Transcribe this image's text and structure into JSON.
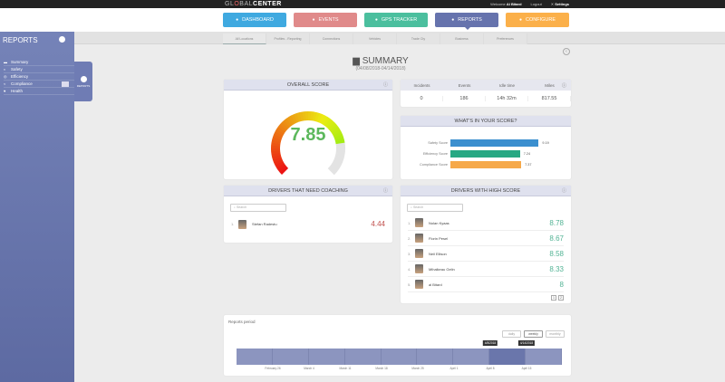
{
  "app": {
    "logo_prefix": "GL",
    "logo_o": "O",
    "logo_main": "BAL",
    "logo_suffix": "CENTER",
    "welcome": "Welcome",
    "user": "Al Bitard",
    "logout": "Logout",
    "settings": "Settings"
  },
  "nav": [
    {
      "label": "DASHBOARD",
      "icon": "dashboard-icon",
      "color": "#3fa9e0"
    },
    {
      "label": "EVENTS",
      "icon": "warning-icon",
      "color": "#e08a8a"
    },
    {
      "label": "GPS TRACKER",
      "icon": "location-pin-icon",
      "color": "#4bbf9e"
    },
    {
      "label": "REPORTS",
      "icon": "pie-chart-icon",
      "color": "#6673ad",
      "active": true
    },
    {
      "label": "CONFIGURE",
      "icon": "user-icon",
      "color": "#fbb04a"
    }
  ],
  "subtabs": [
    "All Locations",
    "Profiles - Reporting",
    "Connections",
    "Vehicles",
    "Trade Cty",
    "Business",
    "Preferences"
  ],
  "sidebar": {
    "title": "REPORTS",
    "items": [
      {
        "label": "Summary",
        "icon": "chart-icon"
      },
      {
        "label": "Safety",
        "icon": "shield-icon"
      },
      {
        "label": "Efficiency",
        "icon": "gauge-icon"
      },
      {
        "label": "Compliance",
        "icon": "checklist-icon"
      },
      {
        "label": "Health",
        "icon": "heart-icon"
      }
    ],
    "flyout": "REPORTS"
  },
  "summary": {
    "title": "SUMMARY",
    "range": "(04/08/2018-04/14/2018)"
  },
  "overall": {
    "title": "OVERALL SCORE",
    "score": "7.85",
    "score_value": 7.85,
    "max": 10,
    "score_color": "#5cb85c"
  },
  "stats": {
    "headers": [
      "Incidents",
      "Events",
      "Idle time",
      "Miles"
    ],
    "values": [
      "0",
      "186",
      "14h 32m",
      "817.55"
    ]
  },
  "whats": {
    "title": "WHAT'S IN YOUR SCORE?",
    "bars": [
      {
        "label": "Safety Score",
        "value": "9.19",
        "num": 9.19,
        "color": "#3b8fcf"
      },
      {
        "label": "Efficiency Score",
        "value": "7.24",
        "num": 7.24,
        "color": "#27a883"
      },
      {
        "label": "Compliance Score",
        "value": "7.37",
        "num": 7.37,
        "color": "#f6a94a"
      }
    ]
  },
  "coaching": {
    "title": "DRIVERS THAT NEED COACHING",
    "search": "Search",
    "drivers": [
      {
        "rank": "1.",
        "name": "Stefan Radestu",
        "score": "4.44"
      }
    ]
  },
  "high": {
    "title": "DRIVERS WITH HIGH SCORE",
    "search": "Search",
    "drivers": [
      {
        "rank": "1.",
        "name": "Nolan Kyaas",
        "score": "8.78"
      },
      {
        "rank": "2.",
        "name": "Florin Pesel",
        "score": "8.67"
      },
      {
        "rank": "3.",
        "name": "Neil Ellison",
        "score": "8.58"
      },
      {
        "rank": "4.",
        "name": "Mihalkeau Gelin",
        "score": "8.33"
      },
      {
        "rank": "5.",
        "name": "al Bitard",
        "score": "8"
      }
    ],
    "pages": [
      "1",
      "2"
    ]
  },
  "period": {
    "title": "Reports period",
    "buttons": [
      "daily",
      "weekly",
      "monthly"
    ],
    "active": "weekly",
    "ticks": [
      "February 26",
      "March 4",
      "March 11",
      "March 18",
      "March 25",
      "April 1",
      "April 8",
      "April 15"
    ],
    "start": "4/8/2018",
    "end": "4/14/2018"
  }
}
